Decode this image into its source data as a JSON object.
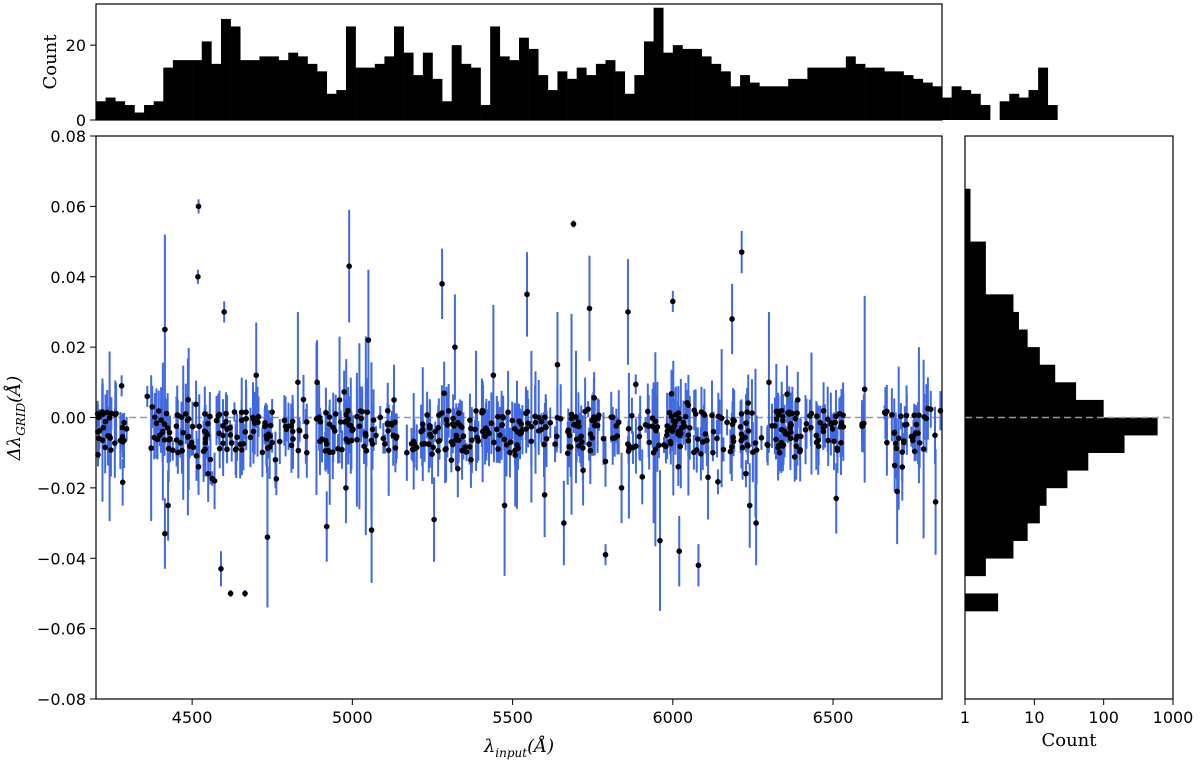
{
  "chart_data": [
    {
      "id": "top_histogram",
      "type": "bar",
      "ylabel": "Count",
      "xlim": [
        4200,
        6840
      ],
      "ylim": [
        0,
        31
      ],
      "yticks": [
        0,
        20
      ],
      "bin_edges_start": 4200,
      "bin_width": 30,
      "values": [
        5,
        6,
        5,
        4,
        2,
        4,
        5,
        14,
        16,
        16,
        16,
        21,
        15,
        27,
        25,
        16,
        16,
        17,
        17,
        16,
        18,
        17,
        15,
        13,
        7,
        8,
        25,
        14,
        14,
        15,
        17,
        25,
        18,
        12,
        18,
        11,
        5,
        20,
        15,
        14,
        4,
        25,
        17,
        16,
        22,
        19,
        12,
        8,
        13,
        11,
        14,
        12,
        15,
        16,
        13,
        7,
        12,
        21,
        30,
        18,
        20,
        19,
        19,
        17,
        15,
        13,
        9,
        12,
        10,
        9,
        9,
        9,
        11,
        11,
        14,
        14,
        14,
        14,
        17,
        15,
        14,
        14,
        13,
        13,
        12,
        11,
        10,
        9,
        6,
        9,
        8,
        7,
        4,
        0,
        5,
        7,
        6,
        8,
        14,
        4
      ],
      "max_value_shown": 31
    },
    {
      "id": "scatter_errorbars",
      "type": "scatter",
      "xlabel": "λinput(Å)",
      "ylabel": "ΔλGRID(Å)",
      "xlim": [
        4200,
        6840
      ],
      "ylim": [
        -0.08,
        0.08
      ],
      "xticks": [
        4500,
        5000,
        5500,
        6000,
        6500
      ],
      "yticks": [
        -0.08,
        -0.06,
        -0.04,
        -0.02,
        0.0,
        0.02,
        0.04,
        0.06,
        0.08
      ],
      "ytick_labels": [
        "−0.08",
        "−0.06",
        "−0.04",
        "−0.02",
        "0.00",
        "0.02",
        "0.04",
        "0.06",
        "0.08"
      ],
      "reference_line_y": 0.0,
      "colors": {
        "points": "#000000",
        "errorbars": "#4169e1",
        "reference_line": "#999999"
      },
      "points": [
        [
          4415,
          0.025,
          0.027
        ],
        [
          4415,
          -0.033,
          0.01
        ],
        [
          4425,
          -0.025,
          0.01
        ],
        [
          4520,
          0.06,
          0.002
        ],
        [
          4518,
          0.04,
          0.002
        ],
        [
          4590,
          -0.043,
          0.005
        ],
        [
          4600,
          0.03,
          0.003
        ],
        [
          4620,
          -0.05,
          0.001
        ],
        [
          4665,
          -0.05,
          0.001
        ],
        [
          4735,
          -0.034,
          0.02
        ],
        [
          4700,
          0.012,
          0.015
        ],
        [
          4830,
          0.01,
          0.02
        ],
        [
          4990,
          0.043,
          0.016
        ],
        [
          4960,
          0.005,
          0.018
        ],
        [
          5050,
          0.022,
          0.02
        ],
        [
          5280,
          0.038,
          0.01
        ],
        [
          5255,
          -0.029,
          0.012
        ],
        [
          5320,
          0.02,
          0.015
        ],
        [
          5440,
          0.012,
          0.02
        ],
        [
          5475,
          -0.025,
          0.02
        ],
        [
          5545,
          0.035,
          0.012
        ],
        [
          5690,
          0.055,
          0.001
        ],
        [
          5740,
          0.031,
          0.015
        ],
        [
          5790,
          -0.039,
          0.003
        ],
        [
          5860,
          0.03,
          0.015
        ],
        [
          5940,
          -0.01,
          0.02
        ],
        [
          5960,
          -0.035,
          0.02
        ],
        [
          6000,
          0.033,
          0.003
        ],
        [
          6020,
          -0.038,
          0.01
        ],
        [
          6080,
          -0.042,
          0.006
        ],
        [
          6185,
          0.028,
          0.01
        ],
        [
          6215,
          0.047,
          0.006
        ],
        [
          6300,
          0.01,
          0.02
        ],
        [
          6510,
          -0.023,
          0.01
        ],
        [
          6700,
          -0.021,
          0.015
        ],
        [
          6820,
          -0.024,
          0.015
        ],
        [
          4280,
          0.009,
          0.003
        ],
        [
          4360,
          0.006,
          0.003
        ],
        [
          4890,
          0.01,
          0.012
        ],
        [
          5130,
          0.005,
          0.01
        ],
        [
          5640,
          0.015,
          0.015
        ],
        [
          6390,
          0.005,
          0.008
        ],
        [
          4520,
          -0.014,
          0.008
        ],
        [
          4550,
          -0.016,
          0.008
        ],
        [
          4570,
          -0.018,
          0.008
        ],
        [
          4760,
          -0.012,
          0.008
        ],
        [
          4920,
          -0.031,
          0.01
        ],
        [
          4980,
          -0.02,
          0.01
        ],
        [
          5060,
          -0.032,
          0.015
        ],
        [
          5170,
          -0.01,
          0.008
        ],
        [
          5370,
          -0.012,
          0.008
        ],
        [
          5460,
          -0.005,
          0.008
        ],
        [
          5600,
          -0.022,
          0.012
        ],
        [
          5660,
          -0.03,
          0.012
        ],
        [
          5720,
          -0.015,
          0.01
        ],
        [
          5840,
          -0.02,
          0.01
        ],
        [
          6110,
          -0.017,
          0.012
        ],
        [
          6240,
          -0.025,
          0.012
        ],
        [
          6260,
          -0.03,
          0.012
        ],
        [
          6330,
          -0.008,
          0.008
        ],
        [
          6470,
          -0.004,
          0.005
        ],
        [
          6760,
          -0.002,
          0.005
        ]
      ]
    },
    {
      "id": "right_histogram",
      "type": "bar",
      "orientation": "horizontal",
      "xscale": "log",
      "xlabel": "Count",
      "xlim": [
        1,
        1000
      ],
      "xticks": [
        1,
        10,
        100,
        1000
      ],
      "bins_y_center": [
        0.0625,
        0.0575,
        0.0525,
        0.0475,
        0.0425,
        0.0375,
        0.0325,
        0.0275,
        0.0225,
        0.0175,
        0.0125,
        0.0075,
        0.0025,
        -0.0025,
        -0.0075,
        -0.0125,
        -0.0175,
        -0.0225,
        -0.0275,
        -0.0325,
        -0.0375,
        -0.0425,
        -0.0475,
        -0.0525
      ],
      "bin_height": 0.005,
      "values": [
        1.2,
        1.2,
        1.2,
        2,
        2,
        2,
        5,
        6,
        8,
        12,
        20,
        40,
        100,
        600,
        200,
        60,
        30,
        15,
        12,
        8,
        5,
        2,
        0,
        3
      ]
    }
  ]
}
